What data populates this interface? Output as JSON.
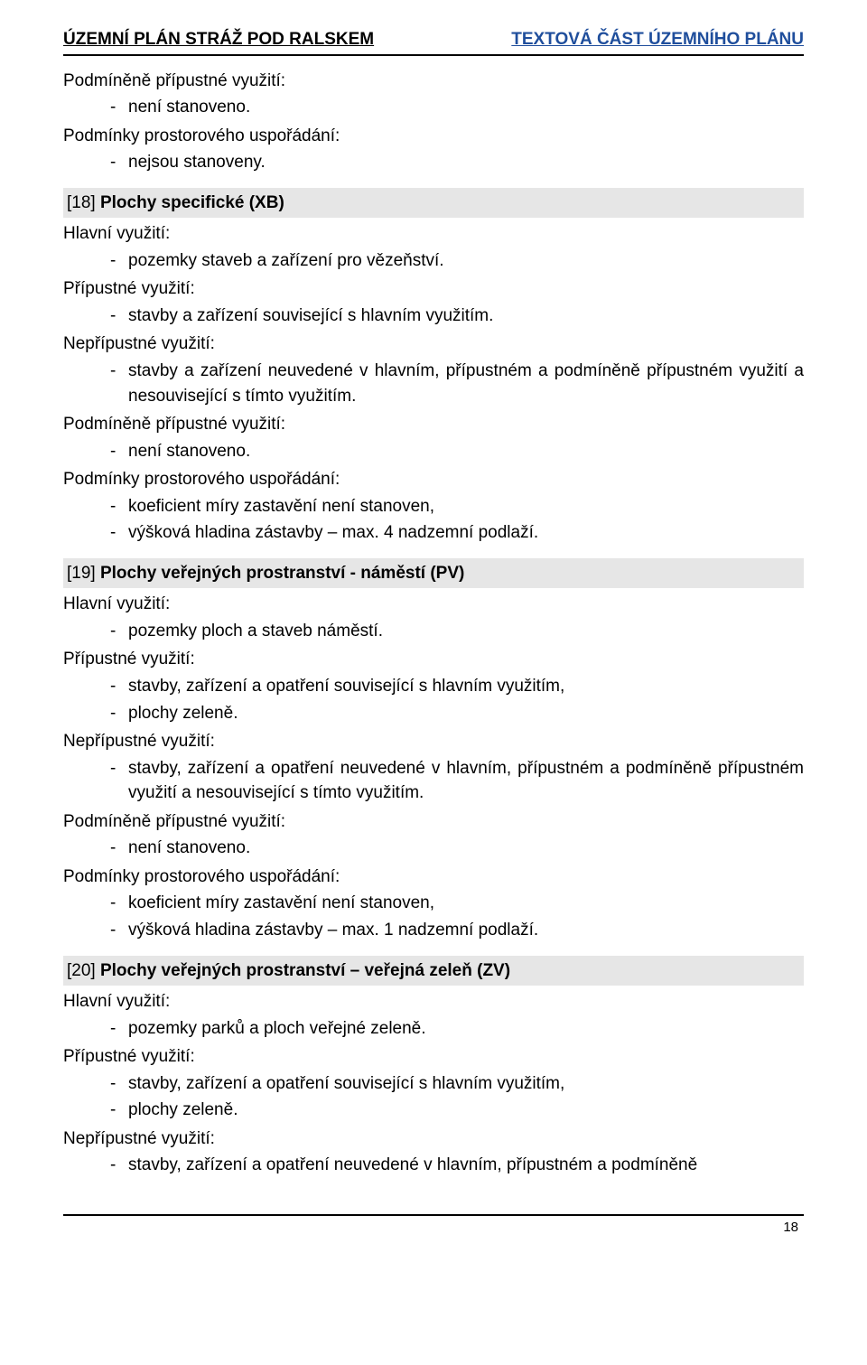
{
  "header": {
    "left": "ÚZEMNÍ PLÁN STRÁŽ POD RALSKEM",
    "right": "TEXTOVÁ ČÁST ÚZEMNÍHO PLÁNU"
  },
  "intro": {
    "pp_label": "Podmíněně přípustné využití:",
    "pp_items": [
      "není stanoveno."
    ],
    "pu_label": "Podmínky prostorového uspořádání:",
    "pu_items": [
      "nejsou stanoveny."
    ]
  },
  "s18": {
    "num": "[18]",
    "title": "Plochy specifické (XB)",
    "hv_label": "Hlavní využití:",
    "hv_items": [
      "pozemky staveb a zařízení pro vězeňství."
    ],
    "pv_label": "Přípustné využití:",
    "pv_items": [
      "stavby a zařízení související s hlavním využitím."
    ],
    "nv_label": "Nepřípustné využití:",
    "nv_items": [
      "stavby a zařízení neuvedené v hlavním, přípustném a podmíněně přípustném využití a nesouvisející s tímto využitím."
    ],
    "pp_label": "Podmíněně přípustné využití:",
    "pp_items": [
      "není stanoveno."
    ],
    "pu_label": "Podmínky prostorového uspořádání:",
    "pu_items": [
      "koeficient míry zastavění není stanoven,",
      "výšková hladina zástavby – max. 4 nadzemní podlaží."
    ]
  },
  "s19": {
    "num": "[19]",
    "title": "Plochy veřejných prostranství - náměstí (PV)",
    "hv_label": "Hlavní využití:",
    "hv_items": [
      "pozemky ploch a staveb náměstí."
    ],
    "pv_label": "Přípustné využití:",
    "pv_items": [
      "stavby, zařízení a opatření související s hlavním využitím,",
      "plochy zeleně."
    ],
    "nv_label": "Nepřípustné využití:",
    "nv_items": [
      "stavby, zařízení a opatření neuvedené v hlavním, přípustném a podmíněně přípustném využití a nesouvisející s tímto využitím."
    ],
    "pp_label": "Podmíněně přípustné využití:",
    "pp_items": [
      "není stanoveno."
    ],
    "pu_label": "Podmínky prostorového uspořádání:",
    "pu_items": [
      "koeficient míry zastavění není stanoven,",
      "výšková hladina zástavby – max. 1 nadzemní podlaží."
    ]
  },
  "s20": {
    "num": "[20]",
    "title": "Plochy veřejných prostranství – veřejná zeleň (ZV)",
    "hv_label": "Hlavní využití:",
    "hv_items": [
      "pozemky parků a ploch veřejné zeleně."
    ],
    "pv_label": "Přípustné využití:",
    "pv_items": [
      "stavby, zařízení a opatření související s hlavním využitím,",
      "plochy zeleně."
    ],
    "nv_label": "Nepřípustné využití:",
    "nv_items": [
      "stavby, zařízení a opatření neuvedené v hlavním, přípustném a podmíněně"
    ]
  },
  "page_number": "18"
}
